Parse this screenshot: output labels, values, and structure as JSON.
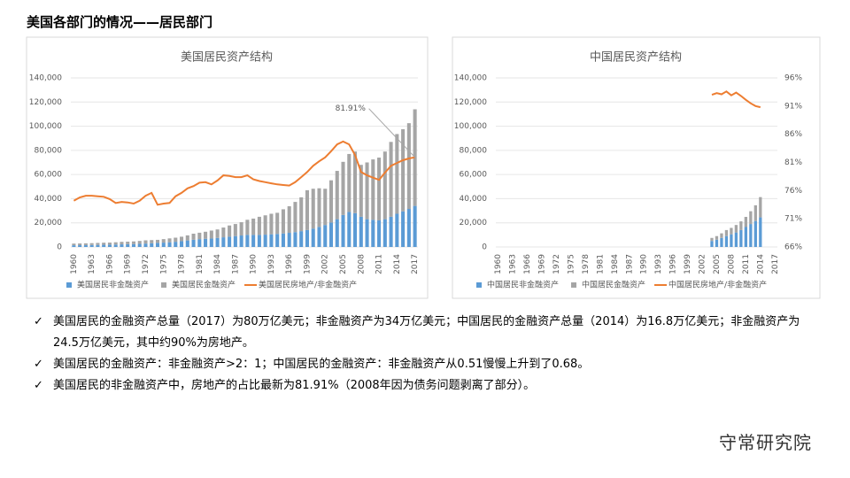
{
  "header": {
    "title": "美国各部门的情况——居民部门"
  },
  "chart_data": [
    {
      "type": "combo",
      "title": "美国居民资产结构",
      "categories": [
        "1960",
        null,
        null,
        "1963",
        null,
        null,
        "1966",
        null,
        null,
        "1969",
        null,
        null,
        "1972",
        null,
        null,
        "1975",
        null,
        null,
        "1978",
        null,
        null,
        "1981",
        null,
        null,
        "1984",
        null,
        null,
        "1987",
        null,
        null,
        "1990",
        null,
        null,
        "1993",
        null,
        null,
        "1996",
        null,
        null,
        "1999",
        null,
        null,
        "2002",
        null,
        null,
        "2005",
        null,
        null,
        "2008",
        null,
        null,
        "2011",
        null,
        null,
        "2014",
        null,
        null,
        "2017"
      ],
      "series": [
        {
          "name": "美国居民非金融资产",
          "kind": "bar",
          "color": "#5b9bd5",
          "values": [
            1400,
            1450,
            1500,
            1600,
            1700,
            1800,
            1900,
            2000,
            2150,
            2300,
            2400,
            2600,
            2800,
            3100,
            3400,
            3600,
            3900,
            4300,
            4800,
            5400,
            6000,
            6500,
            6800,
            7000,
            7500,
            8000,
            8500,
            9000,
            9500,
            10000,
            10000,
            10000,
            10200,
            10500,
            10800,
            11200,
            11700,
            12300,
            13100,
            14000,
            15200,
            16600,
            18200,
            20200,
            23000,
            26500,
            29000,
            28000,
            25000,
            23000,
            22500,
            22000,
            23000,
            25000,
            27500,
            29500,
            31500,
            34000
          ]
        },
        {
          "name": "美国居民金融资产",
          "kind": "bar",
          "color": "#a5a5a5",
          "values": [
            1400,
            1450,
            1500,
            1550,
            1650,
            1750,
            1750,
            1900,
            2100,
            2100,
            2200,
            2400,
            2700,
            2600,
            2500,
            2900,
            3200,
            3400,
            3700,
            4200,
            5000,
            5300,
            5800,
            6600,
            7000,
            8100,
            9300,
            10000,
            11000,
            12500,
            13500,
            15000,
            16000,
            17000,
            17500,
            20000,
            22000,
            25000,
            28000,
            33000,
            33000,
            32000,
            30000,
            35000,
            40000,
            44000,
            48000,
            51000,
            43000,
            47000,
            50000,
            52000,
            56000,
            62000,
            66000,
            68000,
            71000,
            80000
          ]
        },
        {
          "name": "美国居民房地产/非金融资产",
          "kind": "line",
          "axis": "y2",
          "color": "#ed7d31",
          "values": [
            74.2,
            74.8,
            75.1,
            75.1,
            75.0,
            74.9,
            74.5,
            73.8,
            74.0,
            73.9,
            73.7,
            74.2,
            75.1,
            75.6,
            73.5,
            73.7,
            73.8,
            75.0,
            75.6,
            76.4,
            76.8,
            77.4,
            77.5,
            77.1,
            77.8,
            78.7,
            78.6,
            78.4,
            78.4,
            78.7,
            78.0,
            77.7,
            77.5,
            77.3,
            77.1,
            77.0,
            76.9,
            77.5,
            78.4,
            79.3,
            80.4,
            81.2,
            81.9,
            83.0,
            84.2,
            84.7,
            84.2,
            82.3,
            79.3,
            78.7,
            78.3,
            77.9,
            79.2,
            80.4,
            80.9,
            81.4,
            81.7,
            81.91
          ]
        }
      ],
      "annotations": [
        {
          "text": "81.91%"
        }
      ],
      "ylim": [
        0,
        140000
      ],
      "yticks": [
        0,
        {
          "value": 20000,
          "label": "20,000"
        },
        {
          "value": 40000,
          "label": "40,000"
        },
        {
          "value": 60000,
          "label": "60,000"
        },
        {
          "value": 80000,
          "label": "80,000"
        },
        {
          "value": 100000,
          "label": "100,000"
        },
        {
          "value": 120000,
          "label": "120,000"
        },
        {
          "value": 140000,
          "label": "140,000"
        }
      ],
      "y2lim": [
        66,
        96
      ],
      "legend": "bottom"
    },
    {
      "type": "combo",
      "title": "中国居民资产结构",
      "categories": [
        "1960",
        null,
        null,
        "1963",
        null,
        null,
        "1966",
        null,
        null,
        "1969",
        null,
        null,
        "1972",
        null,
        null,
        "1975",
        null,
        null,
        "1978",
        null,
        null,
        "1981",
        null,
        null,
        "1984",
        null,
        null,
        "1987",
        null,
        null,
        "1990",
        null,
        null,
        "1993",
        null,
        null,
        "1996",
        null,
        null,
        "1999",
        null,
        null,
        "2002",
        null,
        null,
        "2005",
        null,
        null,
        "2008",
        null,
        null,
        "2011",
        null,
        null,
        "2014",
        null,
        null,
        "2017"
      ],
      "series": [
        {
          "name": "中国居民非金融资产",
          "kind": "bar",
          "color": "#5b9bd5",
          "values": [
            null,
            null,
            null,
            null,
            null,
            null,
            null,
            null,
            null,
            null,
            null,
            null,
            null,
            null,
            null,
            null,
            null,
            null,
            null,
            null,
            null,
            null,
            null,
            null,
            null,
            null,
            null,
            null,
            null,
            null,
            null,
            null,
            null,
            null,
            null,
            null,
            null,
            null,
            null,
            null,
            null,
            null,
            null,
            null,
            5000,
            6000,
            7500,
            9000,
            10500,
            12000,
            14000,
            16500,
            19000,
            21500,
            24500,
            null,
            null,
            null
          ]
        },
        {
          "name": "中国居民金融资产",
          "kind": "bar",
          "color": "#a5a5a5",
          "values": [
            null,
            null,
            null,
            null,
            null,
            null,
            null,
            null,
            null,
            null,
            null,
            null,
            null,
            null,
            null,
            null,
            null,
            null,
            null,
            null,
            null,
            null,
            null,
            null,
            null,
            null,
            null,
            null,
            null,
            null,
            null,
            null,
            null,
            null,
            null,
            null,
            null,
            null,
            null,
            null,
            null,
            null,
            null,
            null,
            2500,
            3000,
            3800,
            5000,
            5300,
            6200,
            7200,
            8400,
            10600,
            13000,
            16800,
            null,
            null,
            null
          ]
        },
        {
          "name": "中国居民房地产/非金融资产",
          "kind": "line",
          "axis": "y2",
          "color": "#ed7d31",
          "values": [
            null,
            null,
            null,
            null,
            null,
            null,
            null,
            null,
            null,
            null,
            null,
            null,
            null,
            null,
            null,
            null,
            null,
            null,
            null,
            null,
            null,
            null,
            null,
            null,
            null,
            null,
            null,
            null,
            null,
            null,
            null,
            null,
            null,
            null,
            null,
            null,
            null,
            null,
            null,
            null,
            null,
            null,
            null,
            null,
            93.0,
            93.3,
            93.1,
            93.6,
            92.9,
            93.4,
            92.8,
            92.1,
            91.5,
            91.0,
            90.8,
            null,
            null,
            null
          ]
        }
      ],
      "ylim": [
        0,
        140000
      ],
      "yticks": [
        0,
        {
          "value": 20000,
          "label": "20,000"
        },
        {
          "value": 40000,
          "label": "40,000"
        },
        {
          "value": 60000,
          "label": "60,000"
        },
        {
          "value": 80000,
          "label": "80,000"
        },
        {
          "value": 100000,
          "label": "100,000"
        },
        {
          "value": 120000,
          "label": "120,000"
        },
        {
          "value": 140000,
          "label": "140,000"
        }
      ],
      "y2lim": [
        66,
        96
      ],
      "y2ticks": [
        {
          "value": 66,
          "label": "66%"
        },
        {
          "value": 71,
          "label": "71%"
        },
        {
          "value": 76,
          "label": "76%"
        },
        {
          "value": 81,
          "label": "81%"
        },
        {
          "value": 86,
          "label": "86%"
        },
        {
          "value": 91,
          "label": "91%"
        },
        {
          "value": 96,
          "label": "96%"
        }
      ],
      "legend": "bottom"
    }
  ],
  "bullets": [
    "美国居民的金融资产总量（2017）为80万亿美元；非金融资产为34万亿美元；中国居民的金融资产总量（2014）为16.8万亿美元；非金融资产为24.5万亿美元，其中约90%为房地产。",
    "美国居民的金融资产：非金融资产>2：1；中国居民的金融资产：非金融资产从0.51慢慢上升到了0.68。",
    "美国居民的非金融资产中，房地产的占比最新为81.91%（2008年因为债务问题剥离了部分）。"
  ],
  "logo": {
    "text": "守常研究院"
  }
}
